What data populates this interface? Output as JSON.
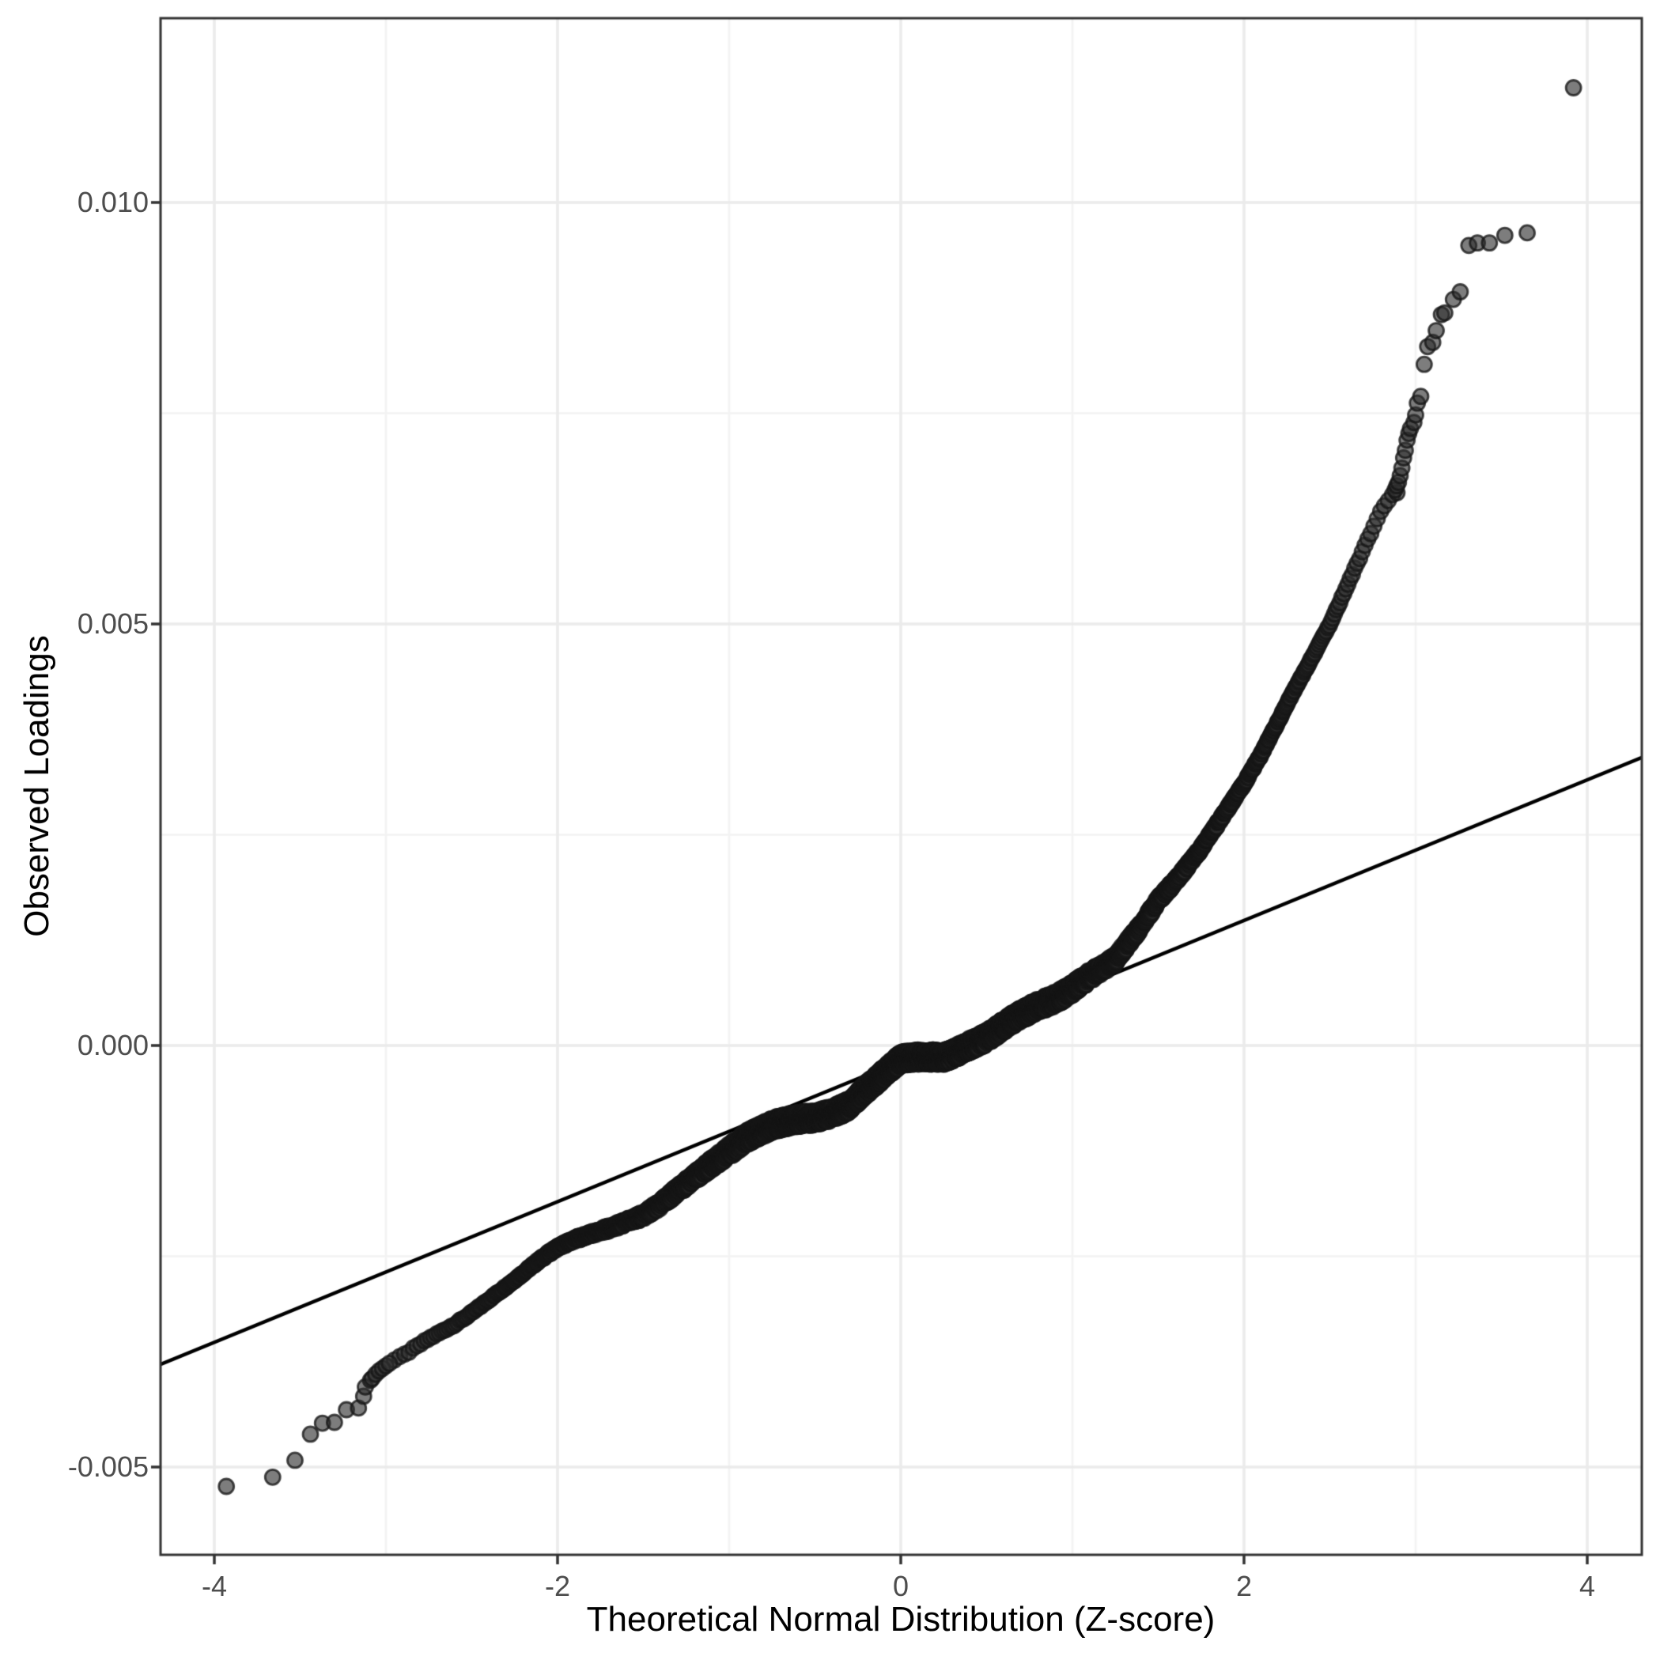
{
  "chart_data": {
    "type": "scatter",
    "subtype": "qq-plot",
    "title": "",
    "xlabel": "Theoretical Normal Distribution (Z-score)",
    "ylabel": "Observed Loadings",
    "xlim": [
      -4.31,
      4.32
    ],
    "ylim": [
      -0.00604,
      0.01219
    ],
    "grid": true,
    "legend": "none",
    "x_ticks": {
      "major": [
        -4,
        -2,
        0,
        2,
        4
      ],
      "minor": [
        -3,
        -1,
        1,
        3
      ],
      "labels": [
        "-4",
        "-2",
        "0",
        "2",
        "4"
      ]
    },
    "y_ticks": {
      "major": [
        0.01,
        0.005,
        0.0,
        -0.005
      ],
      "minor": [
        0.0075,
        0.0025,
        -0.0025
      ],
      "labels": [
        "0.010",
        "0.005",
        "0.000",
        "-0.005"
      ]
    },
    "reference_line": {
      "slope": 0.000834,
      "intercept": -0.000185
    },
    "qq_curve": [
      [
        -2.97,
        -0.00375
      ],
      [
        -2.9,
        -0.00368
      ],
      [
        -2.75,
        -0.00348
      ],
      [
        -2.6,
        -0.00331
      ],
      [
        -2.5,
        -0.00317
      ],
      [
        -2.4,
        -0.00301
      ],
      [
        -2.25,
        -0.00278
      ],
      [
        -2.1,
        -0.00254
      ],
      [
        -2.0,
        -0.0024
      ],
      [
        -1.9,
        -0.0023
      ],
      [
        -1.75,
        -0.00219
      ],
      [
        -1.6,
        -0.00209
      ],
      [
        -1.5,
        -0.00202
      ],
      [
        -1.4,
        -0.0019
      ],
      [
        -1.25,
        -0.00165
      ],
      [
        -1.1,
        -0.00138
      ],
      [
        -1.0,
        -0.00122
      ],
      [
        -0.9,
        -0.00108
      ],
      [
        -0.75,
        -0.00097
      ],
      [
        -0.6,
        -0.0009
      ],
      [
        -0.5,
        -0.00086
      ],
      [
        -0.4,
        -0.00078
      ],
      [
        -0.3,
        -0.00068
      ],
      [
        -0.2,
        -0.0005
      ],
      [
        -0.1,
        -0.00035
      ],
      [
        0.0,
        -0.00019
      ],
      [
        0.1,
        -0.00016
      ],
      [
        0.25,
        -0.00013
      ],
      [
        0.4,
        3e-05
      ],
      [
        0.5,
        0.00011
      ],
      [
        0.65,
        0.00028
      ],
      [
        0.75,
        0.00039
      ],
      [
        0.9,
        0.00055
      ],
      [
        1.0,
        0.0007
      ],
      [
        1.1,
        0.00085
      ],
      [
        1.25,
        0.00102
      ],
      [
        1.4,
        0.0014
      ],
      [
        1.5,
        0.00171
      ],
      [
        1.6,
        0.00195
      ],
      [
        1.75,
        0.00235
      ],
      [
        1.9,
        0.0028
      ],
      [
        2.0,
        0.0031
      ],
      [
        2.1,
        0.00345
      ],
      [
        2.25,
        0.00405
      ],
      [
        2.4,
        0.00462
      ],
      [
        2.5,
        0.005
      ],
      [
        2.6,
        0.00545
      ],
      [
        2.7,
        0.0059
      ],
      [
        2.8,
        0.00635
      ],
      [
        2.87,
        0.00655
      ]
    ],
    "lower_tail_points": [
      [
        -3.93,
        -0.00523
      ],
      [
        -3.66,
        -0.00512
      ],
      [
        -3.53,
        -0.00492
      ],
      [
        -3.44,
        -0.00461
      ],
      [
        -3.37,
        -0.00448
      ],
      [
        -3.3,
        -0.00447
      ],
      [
        -3.23,
        -0.00432
      ],
      [
        -3.16,
        -0.0043
      ],
      [
        -3.13,
        -0.00416
      ],
      [
        -3.12,
        -0.00405
      ],
      [
        -3.09,
        -0.00397
      ],
      [
        -3.08,
        -0.00395
      ],
      [
        -3.06,
        -0.0039
      ],
      [
        -3.04,
        -0.00386
      ],
      [
        -3.02,
        -0.00383
      ],
      [
        -3.0,
        -0.0038
      ],
      [
        -2.98,
        -0.00377
      ]
    ],
    "upper_tail_points": [
      [
        2.88,
        0.00659
      ],
      [
        2.89,
        0.00664
      ],
      [
        2.9,
        0.00668
      ],
      [
        2.91,
        0.00676
      ],
      [
        2.92,
        0.00685
      ],
      [
        2.93,
        0.00697
      ],
      [
        2.94,
        0.00706
      ],
      [
        2.95,
        0.00718
      ],
      [
        2.96,
        0.00726
      ],
      [
        2.97,
        0.00732
      ],
      [
        2.99,
        0.00739
      ],
      [
        3.0,
        0.00748
      ],
      [
        3.01,
        0.00762
      ],
      [
        3.03,
        0.0077
      ],
      [
        3.05,
        0.00808
      ],
      [
        3.07,
        0.00829
      ],
      [
        3.1,
        0.00834
      ],
      [
        3.12,
        0.00848
      ],
      [
        3.15,
        0.00867
      ],
      [
        3.17,
        0.00869
      ],
      [
        3.22,
        0.00885
      ],
      [
        3.26,
        0.00894
      ],
      [
        3.31,
        0.00949
      ],
      [
        3.36,
        0.00952
      ],
      [
        3.43,
        0.00952
      ],
      [
        3.52,
        0.00961
      ],
      [
        3.65,
        0.00964
      ],
      [
        3.92,
        0.01136
      ]
    ],
    "point_style": {
      "radius_px": 9.5,
      "fill": "#2d2d2d",
      "fill_opacity": 0.62,
      "stroke": "#161616",
      "stroke_opacity": 0.78
    },
    "colors": {
      "background": "#ffffff",
      "grid_major": "#ebebeb",
      "grid_minor": "#f3f3f3",
      "panel_border": "#333333",
      "tick_mark": "#333333",
      "tick_label": "#4d4d4d",
      "axis_title": "#000000",
      "reference_line": "#000000"
    }
  }
}
